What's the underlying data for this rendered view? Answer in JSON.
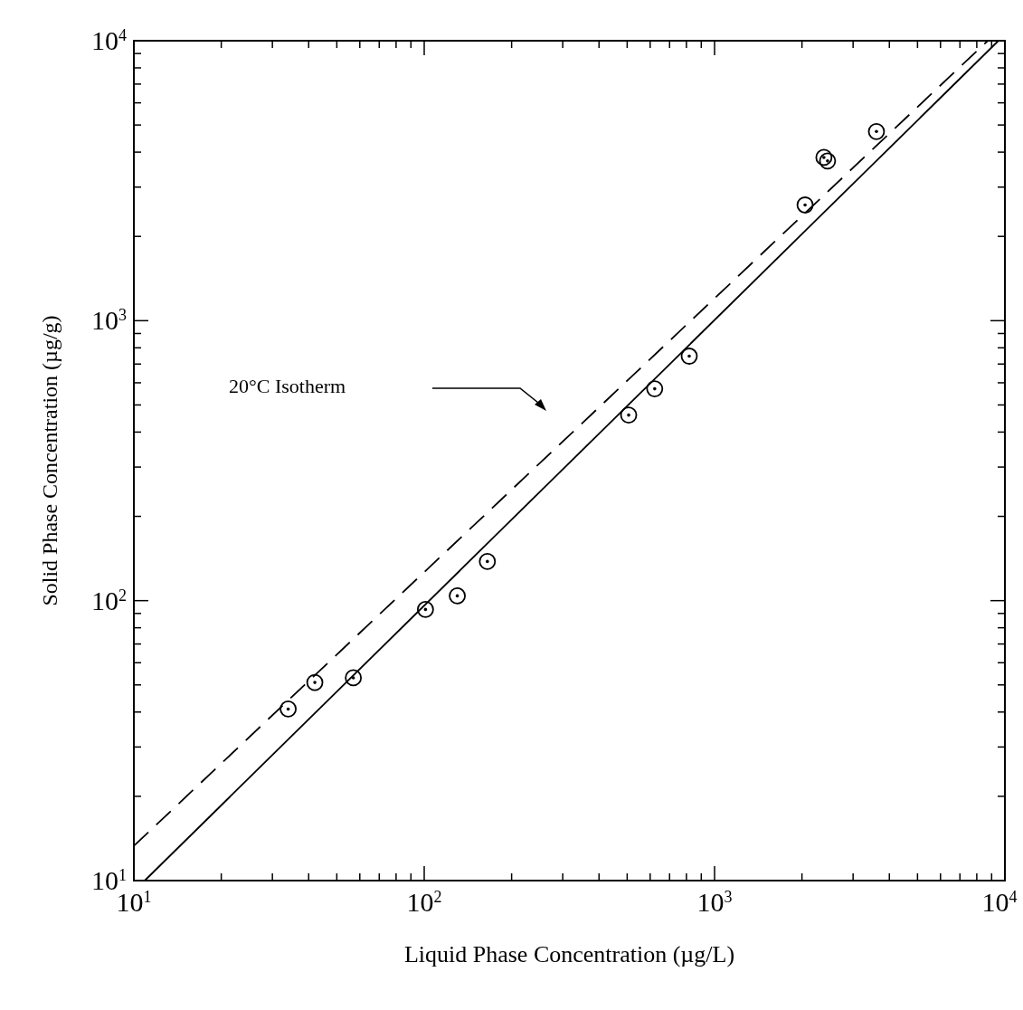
{
  "chart_data": {
    "type": "scatter",
    "xlabel": "Liquid Phase Concentration (µg/L)",
    "ylabel": "Solid Phase Concentration (µg/g)",
    "log": "xy",
    "grid": false,
    "xlim": [
      10,
      10000
    ],
    "ylim": [
      10,
      10000
    ],
    "xticks": [
      {
        "value": 10,
        "label": "10$^{1}$"
      },
      {
        "value": 20,
        "label": null
      },
      {
        "value": 30,
        "label": null
      },
      {
        "value": 40,
        "label": null
      },
      {
        "value": 50,
        "label": null
      },
      {
        "value": 60,
        "label": null
      },
      {
        "value": 70,
        "label": null
      },
      {
        "value": 80,
        "label": null
      },
      {
        "value": 90,
        "label": null
      },
      {
        "value": 100,
        "label": "10$^{2}$"
      },
      {
        "value": 200,
        "label": null
      },
      {
        "value": 300,
        "label": null
      },
      {
        "value": 400,
        "label": null
      },
      {
        "value": 500,
        "label": null
      },
      {
        "value": 600,
        "label": null
      },
      {
        "value": 700,
        "label": null
      },
      {
        "value": 800,
        "label": null
      },
      {
        "value": 900,
        "label": null
      },
      {
        "value": 1000,
        "label": "10$^{3}$"
      },
      {
        "value": 2000,
        "label": null
      },
      {
        "value": 3000,
        "label": null
      },
      {
        "value": 4000,
        "label": null
      },
      {
        "value": 5000,
        "label": null
      },
      {
        "value": 6000,
        "label": null
      },
      {
        "value": 7000,
        "label": null
      },
      {
        "value": 8000,
        "label": null
      },
      {
        "value": 9000,
        "label": null
      },
      {
        "value": 10000,
        "label": "10$^{4}$"
      }
    ],
    "yticks": [
      {
        "value": 10,
        "label": "10$^{1}$"
      },
      {
        "value": 20,
        "label": null
      },
      {
        "value": 30,
        "label": null
      },
      {
        "value": 40,
        "label": null
      },
      {
        "value": 50,
        "label": null
      },
      {
        "value": 60,
        "label": null
      },
      {
        "value": 70,
        "label": null
      },
      {
        "value": 80,
        "label": null
      },
      {
        "value": 90,
        "label": null
      },
      {
        "value": 100,
        "label": "10$^{2}$"
      },
      {
        "value": 200,
        "label": null
      },
      {
        "value": 300,
        "label": null
      },
      {
        "value": 400,
        "label": null
      },
      {
        "value": 500,
        "label": null
      },
      {
        "value": 600,
        "label": null
      },
      {
        "value": 700,
        "label": null
      },
      {
        "value": 800,
        "label": null
      },
      {
        "value": 900,
        "label": null
      },
      {
        "value": 1000,
        "label": "10$^{3}$"
      },
      {
        "value": 2000,
        "label": null
      },
      {
        "value": 3000,
        "label": null
      },
      {
        "value": 4000,
        "label": null
      },
      {
        "value": 5000,
        "label": null
      },
      {
        "value": 6000,
        "label": null
      },
      {
        "value": 7000,
        "label": null
      },
      {
        "value": 8000,
        "label": null
      },
      {
        "value": 9000,
        "label": null
      },
      {
        "value": 10000,
        "label": "10$^{4}$"
      }
    ],
    "series": [
      {
        "marker": "circle",
        "color": "#000000",
        "x": [
          34,
          42,
          57,
          101,
          130,
          165,
          506,
          622,
          818,
          2050,
          2380,
          2450,
          3610
        ],
        "values": [
          41,
          51,
          53,
          93,
          104,
          138,
          460,
          571,
          747,
          2590,
          3830,
          3720,
          4740
        ]
      },
      {
        "type": "line",
        "line_style": "solid",
        "color": "#000000",
        "x": [
          10.9,
          9500
        ],
        "values": [
          10,
          10000
        ]
      },
      {
        "type": "line",
        "line_style": "dashed",
        "color": "#000000",
        "x": [
          10,
          8730
        ],
        "values": [
          13.3,
          10000
        ]
      }
    ],
    "annotations": [
      "20°C Isotherm"
    ]
  }
}
